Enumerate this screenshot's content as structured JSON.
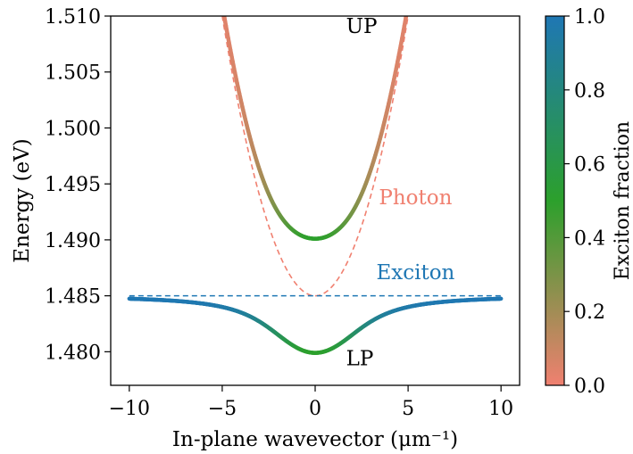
{
  "chart_data": {
    "type": "line",
    "title": "",
    "xlabel": "In-plane wavevector (μm⁻¹)",
    "ylabel": "Energy (eV)",
    "xlim": [
      -11,
      11
    ],
    "ylim": [
      1.477,
      1.51
    ],
    "xticks": [
      -10,
      -5,
      0,
      5,
      10
    ],
    "xtick_labels": [
      "−10",
      "−5",
      "0",
      "5",
      "10"
    ],
    "yticks": [
      1.48,
      1.485,
      1.49,
      1.495,
      1.5,
      1.505,
      1.51
    ],
    "ytick_labels": [
      "1.480",
      "1.485",
      "1.490",
      "1.495",
      "1.500",
      "1.505",
      "1.510"
    ],
    "grid": false,
    "model": {
      "exciton_energy_eV": 1.485,
      "photon_energy_k0_eV": 1.485,
      "rabi_splitting_eV": 0.0102,
      "photon_curvature_eV_per_um2": 0.001
    },
    "series": [
      {
        "name": "UP",
        "style": "solid-colormapped",
        "x": [
          -5.0,
          -4.0,
          -3.0,
          -2.0,
          -1.0,
          0.0,
          1.0,
          2.0,
          3.0,
          4.0,
          5.0
        ],
        "values": [
          1.5111,
          1.5054,
          1.5001,
          1.4955,
          1.4917,
          1.4901,
          1.4917,
          1.4955,
          1.5001,
          1.5054,
          1.5111
        ]
      },
      {
        "name": "LP",
        "style": "solid-colormapped",
        "x": [
          -10.0,
          -8.0,
          -6.0,
          -4.0,
          -3.0,
          -2.0,
          -1.0,
          0.0,
          1.0,
          2.0,
          3.0,
          4.0,
          6.0,
          8.0,
          10.0
        ],
        "values": [
          1.4848,
          1.4846,
          1.4843,
          1.4836,
          1.4829,
          1.4815,
          1.4803,
          1.4799,
          1.4803,
          1.4815,
          1.4829,
          1.4836,
          1.4843,
          1.4846,
          1.4848
        ]
      },
      {
        "name": "Photon",
        "style": "dashed",
        "color": "#f08070",
        "x": [
          -5.0,
          -4.0,
          -3.0,
          -2.0,
          -1.0,
          0.0,
          1.0,
          2.0,
          3.0,
          4.0,
          5.0
        ],
        "values": [
          1.51,
          1.501,
          1.494,
          1.489,
          1.486,
          1.485,
          1.486,
          1.489,
          1.494,
          1.501,
          1.51
        ]
      },
      {
        "name": "Exciton",
        "style": "dashed",
        "color": "#1f77b4",
        "x": [
          -10.0,
          10.0
        ],
        "values": [
          1.485,
          1.485
        ]
      }
    ],
    "annotations": [
      {
        "text": "UP",
        "x": 2.5,
        "y": 1.5085,
        "color": "#000000"
      },
      {
        "text": "Photon",
        "x": 5.4,
        "y": 1.4932,
        "color": "#f08070"
      },
      {
        "text": "Exciton",
        "x": 5.4,
        "y": 1.4865,
        "color": "#1f77b4"
      },
      {
        "text": "LP",
        "x": 2.4,
        "y": 1.4788,
        "color": "#000000"
      }
    ],
    "colorbar": {
      "label": "Exciton fraction",
      "range": [
        0.0,
        1.0
      ],
      "ticks": [
        0.0,
        0.2,
        0.4,
        0.6,
        0.8,
        1.0
      ],
      "tick_labels": [
        "0.0",
        "0.2",
        "0.4",
        "0.6",
        "0.8",
        "1.0"
      ],
      "colors": {
        "low": "#f08070",
        "mid": "#2ca02c",
        "high": "#1f77b4"
      }
    }
  }
}
